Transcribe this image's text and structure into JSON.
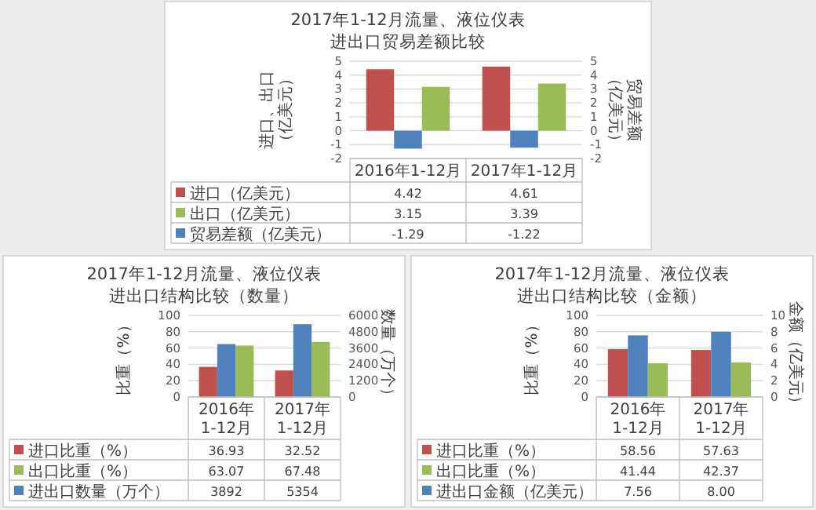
{
  "chart_data": [
    {
      "type": "bar",
      "title": "2017年1-12月流量、液位仪表",
      "subtitle": "进出口贸易差额比较",
      "ylabel": "进口、出口（亿美元）",
      "y2label": "贸易差额（亿美元）",
      "categories": [
        "2016年1-12月",
        "2017年1-12月"
      ],
      "series": [
        {
          "name": "进口（亿美元）",
          "color": "#c0504d",
          "values": [
            4.42,
            4.61
          ],
          "value_labels": [
            "4.42",
            "4.61"
          ]
        },
        {
          "name": "出口（亿美元）",
          "color": "#9bbb59",
          "values": [
            3.15,
            3.39
          ],
          "value_labels": [
            "3.15",
            "3.39"
          ]
        },
        {
          "name": "贸易差额（亿美元）",
          "color": "#4f81bd",
          "values": [
            -1.29,
            -1.22
          ],
          "value_labels": [
            "-1.29",
            "-1.22"
          ],
          "axis": "y2"
        }
      ],
      "ylim": [
        -2,
        5
      ],
      "yticks": [
        -2,
        -1,
        0,
        1,
        2,
        3,
        4,
        5
      ],
      "y2lim": [
        -2,
        5
      ],
      "y2ticks": [
        -2,
        -1,
        0,
        1,
        2,
        3,
        4,
        5
      ],
      "grid": "y",
      "legend": "bottom"
    },
    {
      "type": "bar",
      "title": "2017年1-12月流量、液位仪表",
      "subtitle": "进出口结构比较（数量）",
      "ylabel": "比重（%）",
      "y2label": "数量（万个）",
      "categories": [
        "2016年1-12月",
        "2017年1-12月"
      ],
      "series": [
        {
          "name": "进口比重（%）",
          "color": "#c0504d",
          "values": [
            36.93,
            32.52
          ],
          "value_labels": [
            "36.93",
            "32.52"
          ]
        },
        {
          "name": "出口比重（%）",
          "color": "#9bbb59",
          "values": [
            63.07,
            67.48
          ],
          "value_labels": [
            "63.07",
            "67.48"
          ]
        },
        {
          "name": "进出口数量（万个）",
          "color": "#4f81bd",
          "values": [
            3892,
            5354
          ],
          "value_labels": [
            "3892",
            "5354"
          ],
          "axis": "y2"
        }
      ],
      "ylim": [
        0,
        100
      ],
      "yticks": [
        0,
        20,
        40,
        60,
        80,
        100
      ],
      "y2lim": [
        0,
        6000
      ],
      "y2ticks": [
        0,
        1200,
        2400,
        3600,
        4800,
        6000
      ],
      "grid": "y",
      "legend": "bottom"
    },
    {
      "type": "bar",
      "title": "2017年1-12月流量、液位仪表",
      "subtitle": "进出口结构比较（金额）",
      "ylabel": "比重（%）",
      "y2label": "金额（亿美元）",
      "categories": [
        "2016年1-12月",
        "2017年1-12月"
      ],
      "series": [
        {
          "name": "进口比重（%）",
          "color": "#c0504d",
          "values": [
            58.56,
            57.63
          ],
          "value_labels": [
            "58.56",
            "57.63"
          ]
        },
        {
          "name": "出口比重（%）",
          "color": "#9bbb59",
          "values": [
            41.44,
            42.37
          ],
          "value_labels": [
            "41.44",
            "42.37"
          ]
        },
        {
          "name": "进出口金额（亿美元）",
          "color": "#4f81bd",
          "values": [
            7.56,
            8.0
          ],
          "value_labels": [
            "7.56",
            "8.00"
          ],
          "axis": "y2"
        }
      ],
      "ylim": [
        0,
        100
      ],
      "yticks": [
        0,
        20,
        40,
        60,
        80,
        100
      ],
      "y2lim": [
        0,
        10
      ],
      "y2ticks": [
        0,
        2,
        4,
        6,
        8,
        10
      ],
      "grid": "y",
      "legend": "bottom"
    }
  ]
}
